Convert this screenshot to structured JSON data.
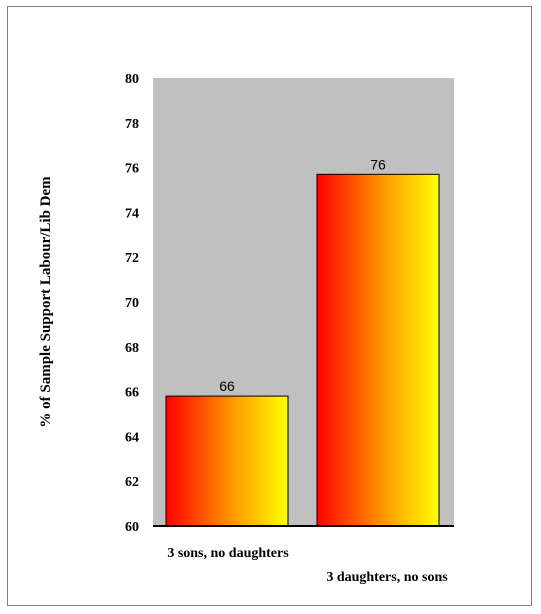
{
  "chart_data": {
    "type": "bar",
    "categories": [
      "3 sons, no daughters",
      "3 daughters, no sons"
    ],
    "values": [
      65.8,
      75.7
    ],
    "data_labels": [
      "66",
      "76"
    ],
    "title": "",
    "xlabel": "",
    "ylabel": "% of Sample Support Labour/Lib Dem",
    "ylim": [
      60,
      80
    ],
    "yticks": [
      "60",
      "62",
      "64",
      "66",
      "68",
      "70",
      "72",
      "74",
      "76",
      "78",
      "80"
    ],
    "grid": false,
    "legend": "none",
    "colors": {
      "plot_background": "#c0c0c0",
      "bar_gradient_start": "#ff0000",
      "bar_gradient_mid": "#ff9900",
      "bar_gradient_end": "#ffff00",
      "bar_outline": "#000000"
    }
  }
}
